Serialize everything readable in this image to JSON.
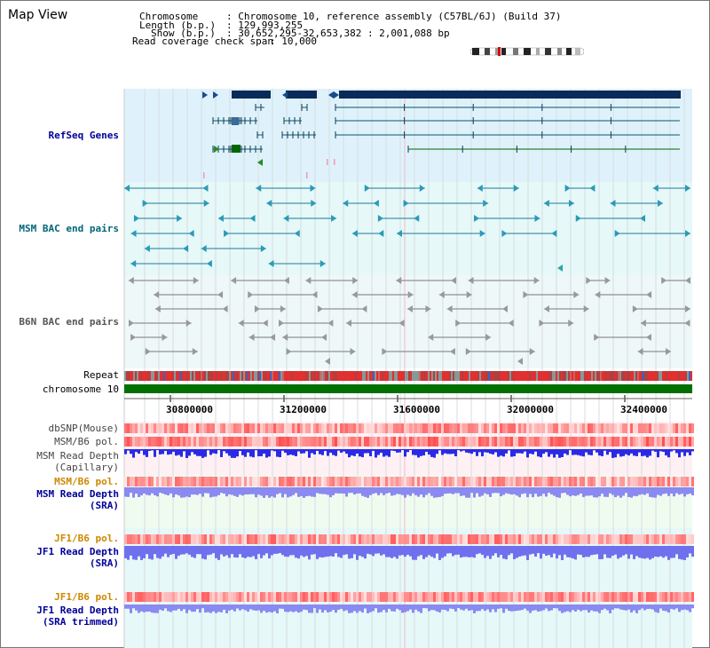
{
  "header": {
    "title": "Map View",
    "chromosome_label": "Chromosome",
    "chromosome_value": ": Chromosome 10, reference assembly (C57BL/6J) (Build 37)",
    "length_label": "Length (b.p.)",
    "length_value": ": 129,993,255",
    "show_label": "Show (b.p.)",
    "show_value": ": 30,652,295-32,653,382 : 2,001,088 bp",
    "coverage_label": "Read coverage check span",
    "coverage_value": ": 10,000"
  },
  "tracks": {
    "refseq": "RefSeq Genes",
    "msm_bac": "MSM BAC end pairs",
    "b6n_bac": "B6N BAC end pairs",
    "repeat": "Repeat",
    "chromosome": "chromosome 10",
    "dbsnp": "dbSNP(Mouse)",
    "msm_b6_pol": "MSM/B6 pol.",
    "msm_depth_cap_1": "MSM Read Depth",
    "msm_depth_cap_2": "(Capillary)",
    "msm_b6_pol_2": "MSM/B6 pol.",
    "msm_depth_sra_1": "MSM Read Depth",
    "msm_depth_sra_2": "(SRA)",
    "jf1_b6_pol": "JF1/B6 pol.",
    "jf1_depth_1": "JF1 Read Depth",
    "jf1_depth_2": "(SRA)",
    "jf1_b6_pol_2": "JF1/B6 pol.",
    "jf1_trim_1": "JF1 Read Depth",
    "jf1_trim_2": "(SRA trimmed)"
  },
  "axis": {
    "ticks": [
      "30800000",
      "31200000",
      "31600000",
      "32000000",
      "32400000"
    ]
  },
  "colors": {
    "refseq_label": "#000099",
    "msm_bac_label": "#006677",
    "b6n_label": "#555555",
    "orange_label": "#cc8800",
    "blue_label": "#000099"
  }
}
